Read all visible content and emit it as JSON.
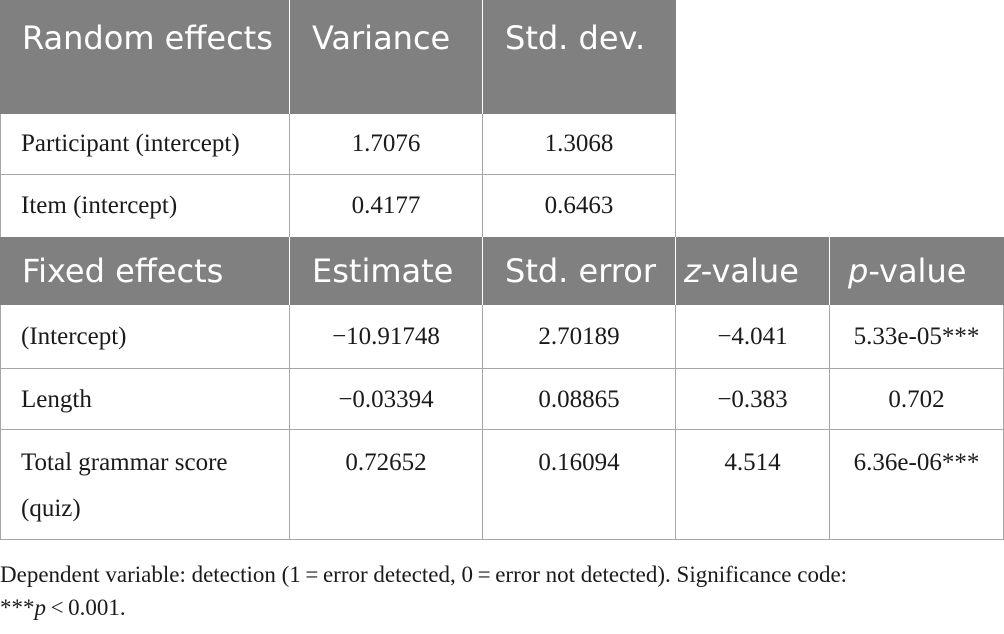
{
  "random": {
    "headers": [
      "Random effects",
      "Variance",
      "Std. dev."
    ],
    "rows": [
      [
        "Participant (intercept)",
        "1.7076",
        "1.3068"
      ],
      [
        "Item (intercept)",
        "0.4177",
        "0.6463"
      ]
    ]
  },
  "fixed": {
    "headers": [
      "Fixed effects",
      "Estimate",
      "Std. error",
      "z",
      "-value",
      "p",
      "-value"
    ],
    "rows": [
      [
        "(Intercept)",
        "−10.91748",
        "2.70189",
        "−4.041",
        "5.33e-05***"
      ],
      [
        "Length",
        "−0.03394",
        "0.08865",
        "−0.383",
        "0.702"
      ],
      [
        "Total grammar score (quiz)",
        "0.72652",
        "0.16094",
        "4.514",
        "6.36e-06***"
      ]
    ]
  },
  "note": {
    "text1": "Dependent variable: detection (1 = error detected, 0 = error not detected). Significance code:",
    "text2a": "***",
    "text2b": "p",
    "text2c": " < 0.001."
  },
  "colors": {
    "header_bg": "#808080",
    "header_text": "#ffffff",
    "grid": "#a6a6a6"
  }
}
